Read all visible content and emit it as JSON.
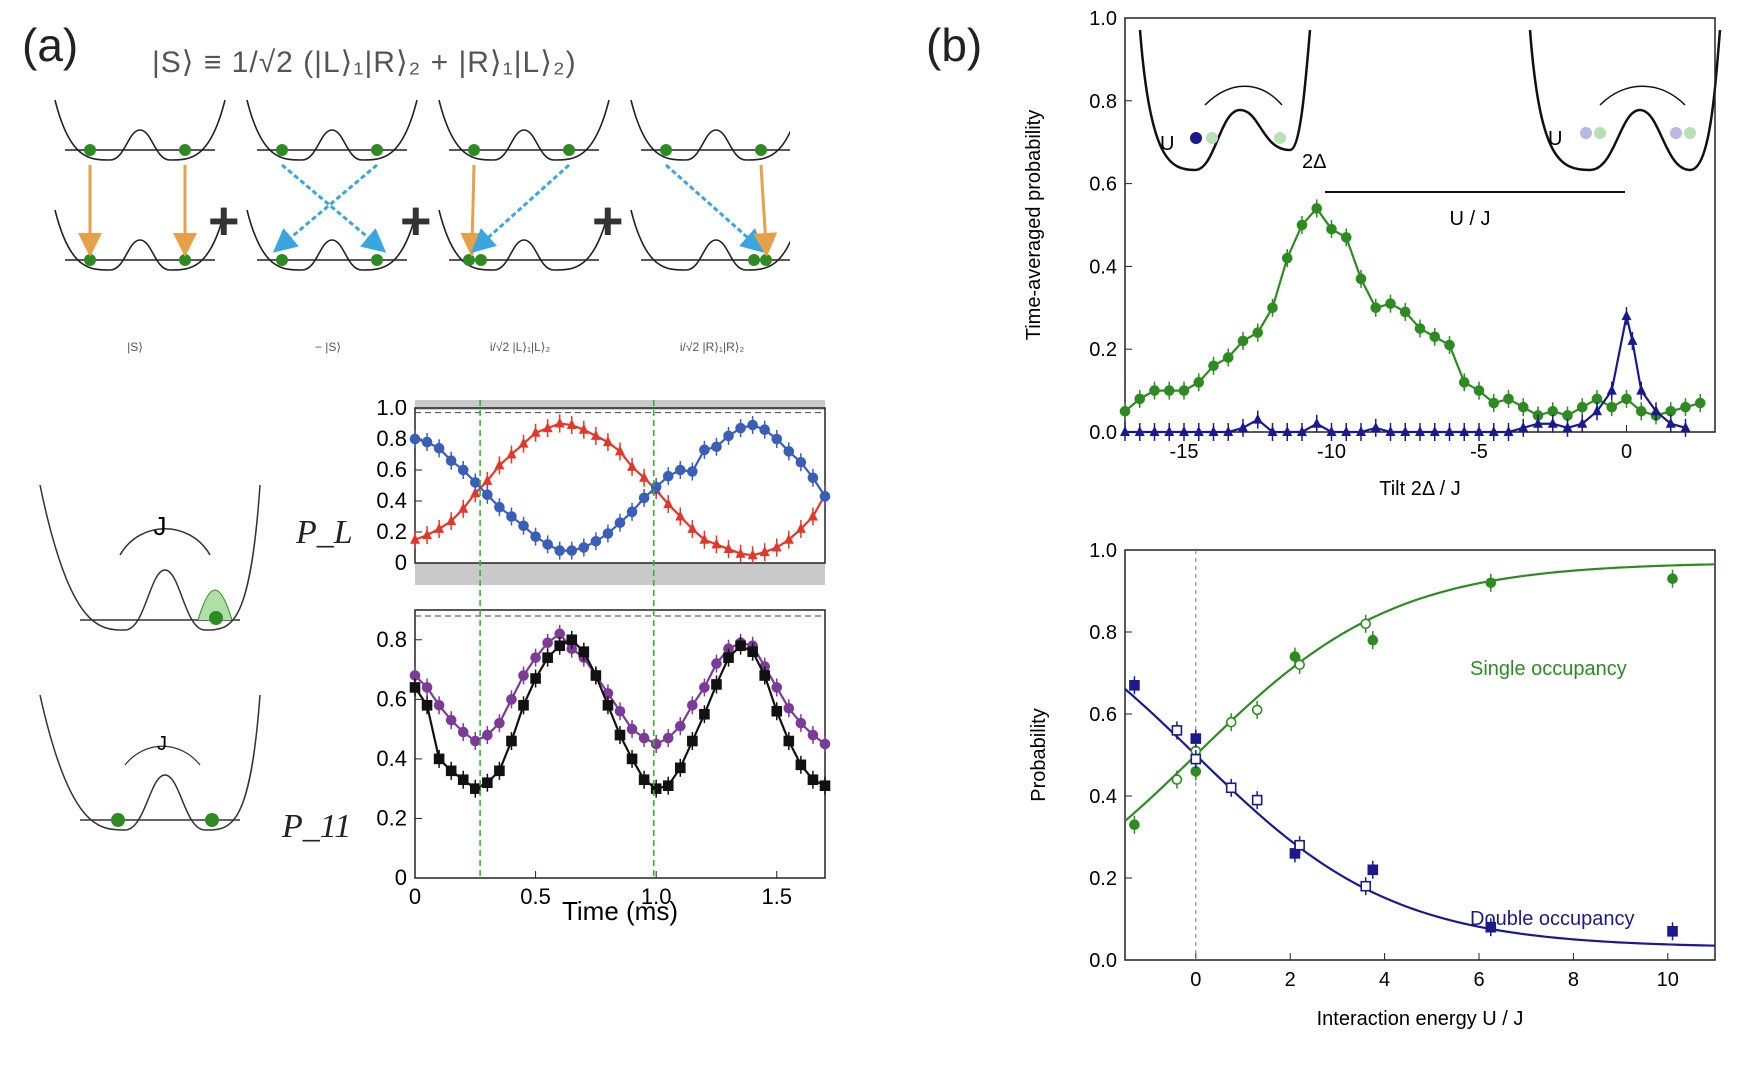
{
  "panel_a": {
    "label": "(a)",
    "formula": "|S⟩ ≡ 1/√2 (|L⟩₁|R⟩₂ + |R⟩₁|L⟩₂)",
    "schematic_terms": [
      "|S⟩",
      "− |S⟩",
      "i/√2 |L⟩₁|L⟩₂",
      "i/√2 |R⟩₁|R⟩₂"
    ],
    "plus": "+",
    "J_label": "J",
    "PL_label": "P_L",
    "P11_label": "P_11"
  },
  "panel_b": {
    "label": "(b)",
    "inset_labels": {
      "U": "U",
      "two_delta": "2Δ",
      "U_over_J": "U / J"
    }
  },
  "colors": {
    "green": "#2e8b22",
    "blue": "#1a1a8c",
    "red": "#e0392b",
    "blueA": "#3a5fb8",
    "purple": "#7b3b96",
    "black": "#111111"
  },
  "chart_data": [
    {
      "id": "PL",
      "type": "line",
      "xlabel": "Time (ms)",
      "ylabel": "",
      "xlim": [
        0,
        1.7
      ],
      "ylim": [
        0,
        1.0
      ],
      "xticks": [
        "0",
        "0.5",
        "1.0",
        "1.5"
      ],
      "yticks": [
        "0",
        "0.2",
        "0.4",
        "0.6",
        "0.8",
        "1.0"
      ],
      "series": [
        {
          "name": "red",
          "x": [
            0.0,
            0.05,
            0.1,
            0.15,
            0.2,
            0.25,
            0.3,
            0.35,
            0.4,
            0.45,
            0.5,
            0.55,
            0.6,
            0.65,
            0.7,
            0.75,
            0.8,
            0.85,
            0.9,
            0.95,
            1.0,
            1.05,
            1.1,
            1.15,
            1.2,
            1.25,
            1.3,
            1.35,
            1.4,
            1.45,
            1.5,
            1.55,
            1.6,
            1.65,
            1.7
          ],
          "y": [
            0.15,
            0.18,
            0.22,
            0.27,
            0.35,
            0.45,
            0.53,
            0.63,
            0.7,
            0.77,
            0.84,
            0.87,
            0.9,
            0.89,
            0.86,
            0.82,
            0.78,
            0.72,
            0.62,
            0.55,
            0.47,
            0.38,
            0.3,
            0.22,
            0.15,
            0.12,
            0.09,
            0.06,
            0.05,
            0.07,
            0.1,
            0.15,
            0.22,
            0.3,
            0.44
          ]
        },
        {
          "name": "blue",
          "x": [
            0.0,
            0.05,
            0.1,
            0.15,
            0.2,
            0.25,
            0.3,
            0.35,
            0.4,
            0.45,
            0.5,
            0.55,
            0.6,
            0.65,
            0.7,
            0.75,
            0.8,
            0.85,
            0.9,
            0.95,
            1.0,
            1.05,
            1.1,
            1.15,
            1.2,
            1.25,
            1.3,
            1.35,
            1.4,
            1.45,
            1.5,
            1.55,
            1.6,
            1.65,
            1.7
          ],
          "y": [
            0.8,
            0.78,
            0.74,
            0.66,
            0.6,
            0.52,
            0.44,
            0.36,
            0.3,
            0.24,
            0.17,
            0.12,
            0.08,
            0.08,
            0.1,
            0.14,
            0.19,
            0.26,
            0.33,
            0.42,
            0.49,
            0.56,
            0.6,
            0.59,
            0.73,
            0.75,
            0.82,
            0.87,
            0.89,
            0.86,
            0.8,
            0.72,
            0.65,
            0.55,
            0.43
          ]
        }
      ]
    },
    {
      "id": "P11",
      "type": "line",
      "xlabel": "Time (ms)",
      "ylabel": "",
      "xlim": [
        0,
        1.7
      ],
      "ylim": [
        0,
        0.9
      ],
      "xticks": [
        "0",
        "0.5",
        "1.0",
        "1.5"
      ],
      "yticks": [
        "0",
        "0.2",
        "0.4",
        "0.6",
        "0.8"
      ],
      "series": [
        {
          "name": "purple",
          "x": [
            0.0,
            0.05,
            0.1,
            0.15,
            0.2,
            0.25,
            0.3,
            0.35,
            0.4,
            0.45,
            0.5,
            0.55,
            0.6,
            0.65,
            0.7,
            0.75,
            0.8,
            0.85,
            0.9,
            0.95,
            1.0,
            1.05,
            1.1,
            1.15,
            1.2,
            1.25,
            1.3,
            1.35,
            1.4,
            1.45,
            1.5,
            1.55,
            1.6,
            1.65,
            1.7
          ],
          "y": [
            0.68,
            0.64,
            0.58,
            0.53,
            0.49,
            0.46,
            0.48,
            0.52,
            0.6,
            0.68,
            0.74,
            0.79,
            0.82,
            0.77,
            0.74,
            0.68,
            0.62,
            0.56,
            0.5,
            0.47,
            0.45,
            0.47,
            0.51,
            0.58,
            0.64,
            0.72,
            0.77,
            0.79,
            0.78,
            0.71,
            0.64,
            0.57,
            0.52,
            0.48,
            0.45
          ]
        },
        {
          "name": "black",
          "x": [
            0.0,
            0.05,
            0.1,
            0.15,
            0.2,
            0.25,
            0.3,
            0.35,
            0.4,
            0.45,
            0.5,
            0.55,
            0.6,
            0.65,
            0.7,
            0.75,
            0.8,
            0.85,
            0.9,
            0.95,
            1.0,
            1.05,
            1.1,
            1.15,
            1.2,
            1.25,
            1.3,
            1.35,
            1.4,
            1.45,
            1.5,
            1.55,
            1.6,
            1.65,
            1.7
          ],
          "y": [
            0.64,
            0.58,
            0.4,
            0.36,
            0.33,
            0.3,
            0.32,
            0.36,
            0.46,
            0.58,
            0.67,
            0.74,
            0.78,
            0.8,
            0.76,
            0.68,
            0.58,
            0.48,
            0.4,
            0.33,
            0.3,
            0.31,
            0.37,
            0.46,
            0.55,
            0.65,
            0.74,
            0.78,
            0.76,
            0.68,
            0.56,
            0.46,
            0.38,
            0.33,
            0.31
          ]
        }
      ]
    },
    {
      "id": "tilt",
      "type": "line",
      "xlabel": "Tilt 2Δ / J",
      "ylabel": "Time-averaged probability",
      "xlim": [
        -17,
        3
      ],
      "ylim": [
        0,
        1.0
      ],
      "xticks": [
        "-15",
        "-10",
        "-5",
        "0"
      ],
      "yticks": [
        "0.0",
        "0.2",
        "0.4",
        "0.6",
        "0.8",
        "1.0"
      ],
      "series": [
        {
          "name": "single",
          "x": [
            -17,
            -16.5,
            -16,
            -15.5,
            -15,
            -14.5,
            -14,
            -13.5,
            -13,
            -12.5,
            -12,
            -11.5,
            -11,
            -10.5,
            -10,
            -9.5,
            -9,
            -8.5,
            -8,
            -7.5,
            -7,
            -6.5,
            -6,
            -5.5,
            -5,
            -4.5,
            -4,
            -3.5,
            -3,
            -2.5,
            -2,
            -1.5,
            -1,
            -0.5,
            0,
            0.5,
            1,
            1.5,
            2,
            2.5
          ],
          "y": [
            0.05,
            0.08,
            0.1,
            0.1,
            0.1,
            0.12,
            0.16,
            0.18,
            0.22,
            0.24,
            0.3,
            0.42,
            0.5,
            0.54,
            0.49,
            0.47,
            0.37,
            0.3,
            0.31,
            0.29,
            0.25,
            0.23,
            0.21,
            0.12,
            0.1,
            0.07,
            0.08,
            0.06,
            0.04,
            0.05,
            0.04,
            0.06,
            0.08,
            0.06,
            0.08,
            0.05,
            0.04,
            0.05,
            0.06,
            0.07
          ]
        },
        {
          "name": "double",
          "x": [
            -17,
            -16.5,
            -16,
            -15.5,
            -15,
            -14.5,
            -14,
            -13.5,
            -13,
            -12.5,
            -12,
            -11.5,
            -11,
            -10.5,
            -10,
            -9.5,
            -9,
            -8.5,
            -8,
            -7.5,
            -7,
            -6.5,
            -6,
            -5.5,
            -5,
            -4.5,
            -4,
            -3.5,
            -3,
            -2.5,
            -2,
            -1.5,
            -1,
            -0.5,
            0,
            0.2,
            0.5,
            1,
            1.5,
            2
          ],
          "y": [
            0.0,
            0.0,
            0.0,
            0.0,
            0.0,
            0.0,
            0.0,
            0.0,
            0.01,
            0.03,
            0.0,
            0.0,
            0.0,
            0.02,
            0.0,
            0.0,
            0.0,
            0.01,
            0.0,
            0.0,
            0.0,
            0.0,
            0.0,
            0.0,
            0.0,
            0.0,
            0.0,
            0.01,
            0.02,
            0.02,
            0.01,
            0.02,
            0.05,
            0.1,
            0.28,
            0.22,
            0.1,
            0.05,
            0.02,
            0.01
          ]
        }
      ]
    },
    {
      "id": "interaction",
      "type": "line",
      "xlabel": "Interaction energy U / J",
      "ylabel": "Probability",
      "xlim": [
        -1.5,
        11
      ],
      "ylim": [
        0,
        1.0
      ],
      "xticks": [
        "0",
        "2",
        "4",
        "6",
        "8",
        "10"
      ],
      "yticks": [
        "0.0",
        "0.2",
        "0.4",
        "0.6",
        "0.8",
        "1.0"
      ],
      "annotations": [
        "Single occupancy",
        "Double occupancy"
      ],
      "series": [
        {
          "name": "single filled",
          "x": [
            -1.3,
            0,
            2.1,
            3.75,
            6.25,
            10.1
          ],
          "y": [
            0.33,
            0.46,
            0.74,
            0.78,
            0.92,
            0.93
          ]
        },
        {
          "name": "single open",
          "x": [
            -0.4,
            0,
            0.75,
            1.3,
            2.2,
            3.6
          ],
          "y": [
            0.44,
            0.51,
            0.58,
            0.61,
            0.72,
            0.82
          ]
        },
        {
          "name": "double filled",
          "x": [
            -1.3,
            0,
            2.1,
            3.75,
            6.25,
            10.1
          ],
          "y": [
            0.67,
            0.54,
            0.26,
            0.22,
            0.08,
            0.07
          ]
        },
        {
          "name": "double open",
          "x": [
            -0.4,
            0,
            0.75,
            1.3,
            2.2,
            3.6
          ],
          "y": [
            0.56,
            0.49,
            0.42,
            0.39,
            0.28,
            0.18
          ]
        }
      ]
    }
  ]
}
